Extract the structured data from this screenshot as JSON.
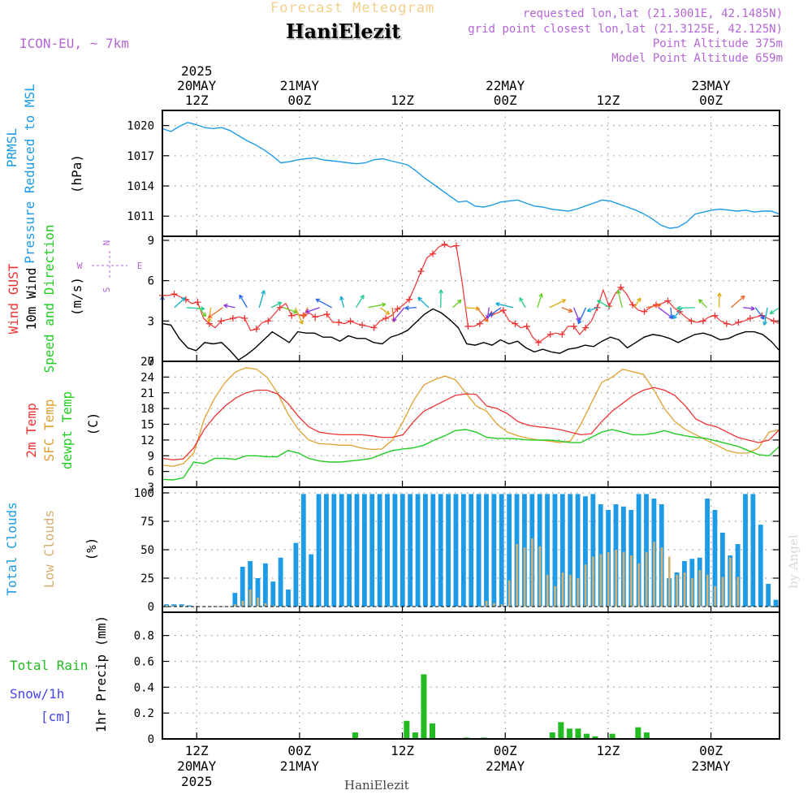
{
  "header": {
    "super_title": "Forecast Meteogram",
    "location": "HaniElezit",
    "model": "ICON-EU, ~ 7km",
    "info_lines": [
      "requested lon,lat (21.3001E, 42.1485N)",
      "grid point closest lon,lat (21.3125E, 42.125N)",
      "Point Altitude 375m",
      "Model Point Altitude 659m"
    ],
    "footer": "HaniElezit",
    "credit": "by Angel"
  },
  "colors": {
    "pressure": "#1e9be6",
    "wind": "#000000",
    "gust": "#ee3333",
    "t2m": "#ee3333",
    "sfc": "#e0a030",
    "dewpt": "#22cc22",
    "total_clouds": "#1e9be6",
    "low_clouds": "#d4b070",
    "rain": "#22bb22",
    "snow": "#4444ee",
    "title_purple": "#b466d6"
  },
  "chart_data": [
    {
      "type": "line",
      "title": "PRMSL Pressure Reduced to MSL",
      "title_lines": [
        "PRMSL",
        "Pressure Reduced to MSL"
      ],
      "ylabel": "(hPa)",
      "time_axis": {
        "start": "2025-05-20 04Z",
        "step_hours": 1,
        "top_labels": [
          {
            "hour": 8,
            "lines": [
              "2025",
              "20MAY",
              "12Z"
            ]
          },
          {
            "hour": 20,
            "lines": [
              "21MAY",
              "00Z"
            ]
          },
          {
            "hour": 32,
            "lines": [
              "12Z"
            ]
          },
          {
            "hour": 44,
            "lines": [
              "22MAY",
              "00Z"
            ]
          },
          {
            "hour": 56,
            "lines": [
              "12Z"
            ]
          },
          {
            "hour": 68,
            "lines": [
              "23MAY",
              "00Z"
            ]
          }
        ],
        "bottom_labels": [
          {
            "hour": 8,
            "lines": [
              "12Z",
              "20MAY",
              "2025"
            ]
          },
          {
            "hour": 20,
            "lines": [
              "00Z",
              "21MAY"
            ]
          },
          {
            "hour": 32,
            "lines": [
              "12Z"
            ]
          },
          {
            "hour": 44,
            "lines": [
              "00Z",
              "22MAY"
            ]
          },
          {
            "hour": 56,
            "lines": [
              "12Z"
            ]
          },
          {
            "hour": 68,
            "lines": [
              "00Z",
              "23MAY"
            ]
          }
        ]
      },
      "ylim": [
        1009,
        1021.5
      ],
      "yticks": [
        1011,
        1014,
        1017,
        1020
      ],
      "series": [
        {
          "name": "PRMSL",
          "values": [
            1019.7,
            1019.4,
            1019.9,
            1020.3,
            1020.1,
            1019.8,
            1019.7,
            1019.8,
            1019.5,
            1019.0,
            1018.5,
            1018.1,
            1017.6,
            1017.0,
            1016.3,
            1016.4,
            1016.6,
            1016.7,
            1016.8,
            1016.6,
            1016.5,
            1016.4,
            1016.3,
            1016.2,
            1016.3,
            1016.6,
            1016.7,
            1016.5,
            1016.3,
            1016.1,
            1015.5,
            1014.8,
            1014.2,
            1013.6,
            1013.0,
            1012.4,
            1012.5,
            1012.0,
            1011.9,
            1012.1,
            1012.4,
            1012.5,
            1012.6,
            1012.3,
            1012.0,
            1011.9,
            1011.7,
            1011.6,
            1011.5,
            1011.7,
            1012.0,
            1012.3,
            1012.6,
            1012.5,
            1012.2,
            1011.9,
            1011.6,
            1011.2,
            1010.7,
            1010.1,
            1009.8,
            1009.9,
            1010.4,
            1011.2,
            1011.4,
            1011.6,
            1011.7,
            1011.6,
            1011.5,
            1011.6,
            1011.4,
            1011.5,
            1011.5,
            1011.2
          ]
        }
      ]
    },
    {
      "type": "line",
      "title_lines": [
        "Wind GUST",
        "10m Wind",
        "Speed and Direction"
      ],
      "ylabel": "(m/s)",
      "compass": {
        "n": "N",
        "s": "S",
        "w": "W",
        "e": "E"
      },
      "ylim": [
        0,
        9.3
      ],
      "yticks": [
        0,
        3,
        6,
        9
      ],
      "series": [
        {
          "name": "Wind GUST",
          "values": [
            4.9,
            4.9,
            5.0,
            4.8,
            4.6,
            4.3,
            4.4,
            3.2,
            2.8,
            2.5,
            3.0,
            3.1,
            3.2,
            3.3,
            3.2,
            2.3,
            2.4,
            2.9,
            3.0,
            3.5,
            4.0,
            4.3,
            3.4,
            3.5,
            3.4,
            3.6,
            3.3,
            3.4,
            3.5,
            2.9,
            2.9,
            2.8,
            3.0,
            2.8,
            2.7,
            2.6,
            2.5,
            3.0,
            3.2,
            3.4,
            3.9,
            4.2,
            4.6,
            5.6,
            6.7,
            7.7,
            8.0,
            8.5,
            8.7,
            8.5,
            8.6,
            5.9,
            2.6,
            2.6,
            2.8,
            3.2,
            3.5,
            3.6,
            3.8,
            3.0,
            2.8,
            2.5,
            2.6,
            1.8,
            1.4,
            1.7,
            2.0,
            2.1,
            2.0,
            2.6,
            2.6,
            2.0,
            2.5,
            3.0,
            4.0,
            5.3,
            4.1,
            5.0,
            5.5,
            5.0,
            4.2,
            3.8,
            3.7,
            4.0,
            4.2,
            4.3,
            4.5,
            4.0,
            3.7,
            3.3,
            3.0,
            2.9,
            3.0,
            3.3,
            3.4,
            3.0,
            2.8,
            2.7,
            2.9,
            3.0,
            3.2,
            3.3,
            3.4,
            3.2,
            3.0,
            2.8
          ]
        },
        {
          "name": "10m Wind",
          "values": [
            2.8,
            2.7,
            1.7,
            1.0,
            0.8,
            1.4,
            1.3,
            1.4,
            0.8,
            0.1,
            0.5,
            1.0,
            1.6,
            2.2,
            1.8,
            1.4,
            2.2,
            2.1,
            2.1,
            1.8,
            1.8,
            1.5,
            1.9,
            1.7,
            1.7,
            1.4,
            1.3,
            1.8,
            2.0,
            2.3,
            2.9,
            3.5,
            3.9,
            3.6,
            3.1,
            2.5,
            1.3,
            1.2,
            1.4,
            1.2,
            1.6,
            1.3,
            1.5,
            1.0,
            0.7,
            0.9,
            0.7,
            0.6,
            0.9,
            1.0,
            1.2,
            1.1,
            1.5,
            1.8,
            1.6,
            1.0,
            1.4,
            1.8,
            2.0,
            1.9,
            1.7,
            1.4,
            1.7,
            2.0,
            2.1,
            1.9,
            1.6,
            1.7,
            2.0,
            2.2,
            2.2,
            2.0,
            1.5,
            0.8
          ]
        }
      ],
      "wind_arrows": {
        "colors_note": "direction arrows coloured by speed",
        "count": 52
      }
    },
    {
      "type": "line",
      "title_lines": [
        "2m Temp",
        "SFC Temp",
        "dewpt Temp"
      ],
      "ylabel": "(C)",
      "ylim": [
        3,
        27
      ],
      "yticks": [
        3,
        6,
        9,
        12,
        15,
        18,
        21,
        24,
        27
      ],
      "series": [
        {
          "name": "2m Temp",
          "values": [
            8.5,
            8.2,
            8.4,
            10.5,
            14.0,
            16.5,
            18.5,
            20.0,
            21.0,
            21.5,
            21.5,
            20.8,
            19.0,
            16.5,
            14.5,
            13.5,
            13.2,
            13.0,
            13.0,
            13.0,
            12.8,
            12.5,
            12.5,
            13.0,
            15.5,
            17.5,
            18.5,
            19.5,
            20.5,
            20.8,
            20.7,
            18.5,
            18.0,
            17.0,
            15.5,
            14.8,
            14.5,
            14.3,
            14.0,
            13.5,
            13.0,
            13.2,
            15.5,
            17.5,
            19.0,
            20.5,
            21.5,
            22.0,
            21.5,
            20.5,
            18.5,
            16.0,
            15.0,
            14.5,
            13.5,
            12.5,
            12.0,
            11.5,
            12.0,
            14.0
          ]
        },
        {
          "name": "SFC Temp",
          "values": [
            7.2,
            7.0,
            7.5,
            9.5,
            16.0,
            20.0,
            23.0,
            25.0,
            25.8,
            25.5,
            24.0,
            21.0,
            17.0,
            14.0,
            12.0,
            11.3,
            11.2,
            11.0,
            11.0,
            10.5,
            10.2,
            10.3,
            12.0,
            15.5,
            19.5,
            22.5,
            23.5,
            24.2,
            23.5,
            21.0,
            18.5,
            17.5,
            15.0,
            13.5,
            12.8,
            12.3,
            12.0,
            11.8,
            11.5,
            11.8,
            15.0,
            19.0,
            23.0,
            24.0,
            25.5,
            25.0,
            24.5,
            21.5,
            18.0,
            15.5,
            14.0,
            13.0,
            12.0,
            11.0,
            10.0,
            9.5,
            9.5,
            10.5,
            13.5,
            14.0
          ]
        },
        {
          "name": "dewpt Temp",
          "values": [
            4.5,
            4.4,
            4.8,
            7.8,
            7.5,
            8.5,
            8.5,
            8.3,
            9.0,
            9.0,
            8.8,
            8.8,
            10.0,
            9.5,
            8.5,
            8.0,
            7.8,
            7.8,
            8.0,
            8.2,
            8.5,
            9.3,
            10.0,
            10.3,
            10.5,
            11.0,
            12.0,
            12.8,
            13.8,
            14.0,
            13.5,
            12.5,
            12.3,
            12.3,
            12.2,
            12.0,
            12.0,
            12.0,
            11.8,
            11.5,
            11.5,
            12.5,
            13.5,
            14.0,
            13.5,
            13.0,
            13.0,
            13.3,
            13.8,
            13.2,
            12.8,
            12.5,
            12.3,
            11.8,
            11.3,
            10.8,
            10.0,
            9.2,
            9.0,
            10.8
          ]
        }
      ]
    },
    {
      "type": "bar",
      "title_lines": [
        "Total Clouds",
        "Low Clouds"
      ],
      "ylabel": "(%)",
      "ylim": [
        -5,
        105
      ],
      "yticks": [
        0,
        25,
        50,
        75,
        100
      ],
      "series": [
        {
          "name": "Total Clouds",
          "values": [
            2,
            2,
            2,
            1,
            0,
            0,
            0,
            0,
            0,
            12,
            35,
            40,
            25,
            38,
            22,
            43,
            15,
            56,
            99,
            46,
            99,
            99,
            99,
            99,
            99,
            99,
            99,
            99,
            99,
            99,
            99,
            99,
            99,
            99,
            99,
            99,
            99,
            99,
            99,
            99,
            99,
            99,
            99,
            99,
            99,
            99,
            99,
            99,
            99,
            99,
            99,
            99,
            99,
            99,
            99,
            97,
            99,
            90,
            85,
            90,
            88,
            85,
            99,
            99,
            95,
            90,
            25,
            30,
            40,
            42,
            43,
            95,
            85,
            65,
            45,
            55,
            99,
            99,
            72,
            20,
            6
          ]
        },
        {
          "name": "Low Clouds",
          "values": [
            1,
            1,
            1,
            0,
            0,
            0,
            0,
            0,
            0,
            2,
            5,
            15,
            8,
            3,
            1,
            0,
            0,
            0,
            0,
            0,
            0,
            0,
            0,
            0,
            0,
            0,
            0,
            0,
            0,
            0,
            0,
            0,
            0,
            0,
            0,
            0,
            0,
            0,
            0,
            0,
            0,
            0,
            5,
            3,
            2,
            23,
            55,
            52,
            60,
            53,
            28,
            18,
            30,
            28,
            25,
            37,
            44,
            46,
            48,
            50,
            48,
            45,
            38,
            48,
            57,
            52,
            44,
            28,
            30,
            25,
            32,
            28,
            18,
            26,
            43,
            26,
            0,
            0,
            0,
            0,
            0
          ]
        }
      ]
    },
    {
      "type": "bar",
      "title_lines": [
        "Total Rain",
        "Snow/1h",
        "[cm]"
      ],
      "ylabel": "1hr Precip (mm)",
      "ylim": [
        0,
        0.98
      ],
      "yticks": [
        0,
        0.2,
        0.4,
        0.6,
        0.8
      ],
      "series": [
        {
          "name": "Total Rain",
          "hours": [
            26,
            32,
            33,
            34,
            35,
            39,
            41,
            49,
            50,
            51,
            52,
            53,
            54,
            56,
            59,
            60
          ],
          "values": [
            0.05,
            0.14,
            0.05,
            0.5,
            0.12,
            0.01,
            0.01,
            0.05,
            0.13,
            0.08,
            0.08,
            0.04,
            0.02,
            0.04,
            0.09,
            0.05
          ]
        }
      ]
    }
  ]
}
